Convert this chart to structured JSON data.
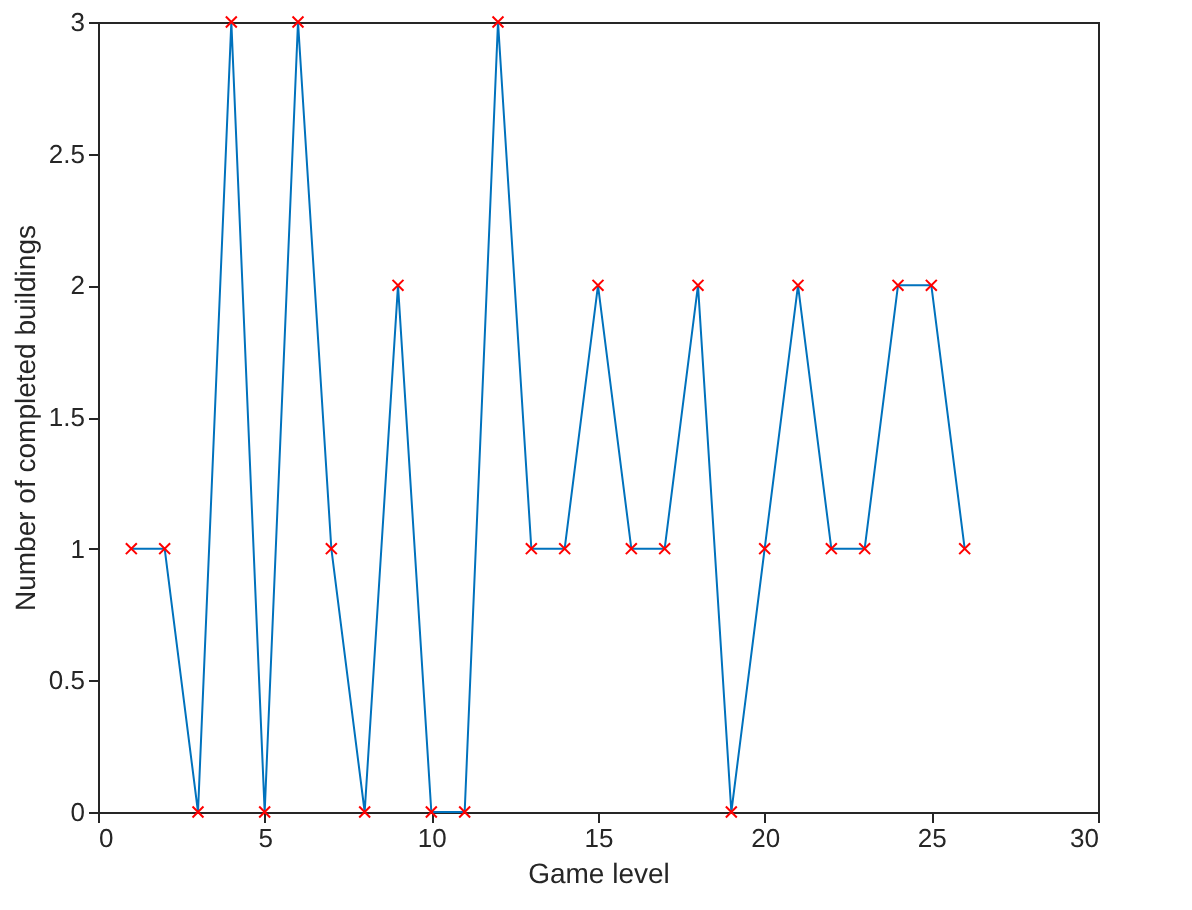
{
  "chart_data": {
    "type": "line",
    "xlabel": "Game level",
    "ylabel": "Number of completed buildings",
    "x": [
      1,
      2,
      3,
      4,
      5,
      6,
      7,
      8,
      9,
      10,
      11,
      12,
      13,
      14,
      15,
      16,
      17,
      18,
      19,
      20,
      21,
      22,
      23,
      24,
      25,
      26
    ],
    "series": [
      {
        "color": "#0072bd",
        "marker": "none",
        "values": [
          1,
          1,
          0,
          3,
          0,
          3,
          1,
          0,
          2,
          0,
          0,
          3,
          1,
          1,
          2,
          1,
          1,
          2,
          0,
          1,
          2,
          1,
          1,
          2,
          2,
          1
        ]
      },
      {
        "type": "scatter",
        "color": "#ff0000",
        "marker": "cross",
        "values": [
          1,
          1,
          0,
          3,
          0,
          3,
          1,
          0,
          2,
          0,
          0,
          3,
          1,
          1,
          2,
          1,
          1,
          2,
          0,
          1,
          2,
          1,
          1,
          2,
          2,
          1
        ]
      }
    ],
    "xlim": [
      0,
      30
    ],
    "xticks": [
      0,
      5,
      10,
      15,
      20,
      25,
      30
    ],
    "ylim": [
      0,
      3
    ],
    "yticks": [
      0,
      0.5,
      1,
      1.5,
      2,
      2.5,
      3
    ],
    "grid": false
  }
}
